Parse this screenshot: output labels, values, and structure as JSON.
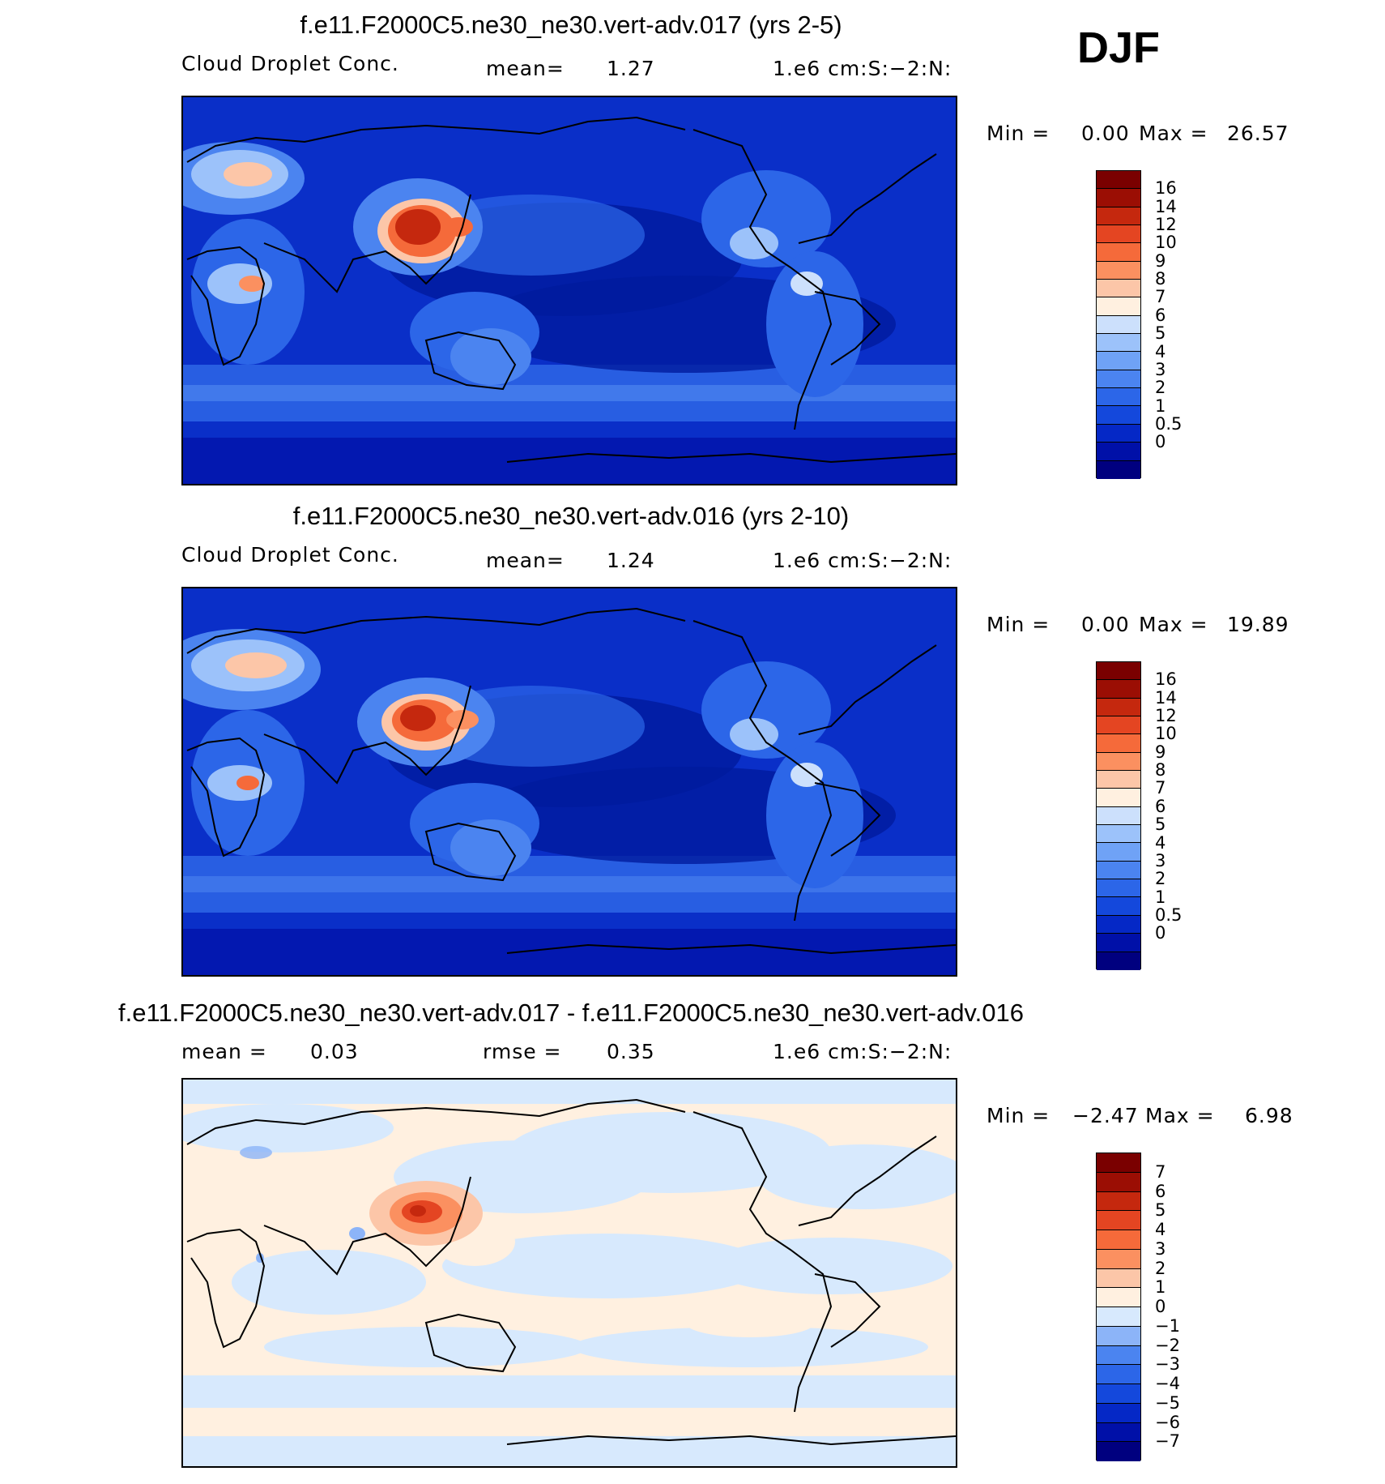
{
  "season": "DJF",
  "colors": {
    "base17": [
      "#00007f",
      "#0010a8",
      "#0528c6",
      "#1448dc",
      "#2c66e8",
      "#4b84f0",
      "#6fa2f6",
      "#9cc2fa",
      "#cce0fc",
      "#fff0e0",
      "#fcc6a8",
      "#fb9060",
      "#f56a3a",
      "#e44522",
      "#c5280e",
      "#9b0e04",
      "#7a0000"
    ],
    "diff16": [
      "#00007f",
      "#0010a8",
      "#0528c6",
      "#1448dc",
      "#2c66e8",
      "#4b84f0",
      "#8cb4f8",
      "#d7e9fd",
      "#fff0e0",
      "#fcc6a8",
      "#fb9060",
      "#f56a3a",
      "#e44522",
      "#c5280e",
      "#9b0e04",
      "#7a0000"
    ]
  },
  "panels": [
    {
      "title": "f.e11.F2000C5.ne30_ne30.vert-adv.017 (yrs 2-5)",
      "variable": "Cloud Droplet Conc.",
      "stat_label": "mean=",
      "stat_value": "1.27",
      "units": "1.e6 cm:S:−2:N:",
      "min_label": "Min =",
      "min_value": "0.00",
      "max_label": "Max =",
      "max_value": "26.57",
      "levels": [
        "16",
        "14",
        "12",
        "10",
        "9",
        "8",
        "7",
        "6",
        "5",
        "4",
        "3",
        "2",
        "1",
        "0.5",
        "0"
      ]
    },
    {
      "title": "f.e11.F2000C5.ne30_ne30.vert-adv.016 (yrs 2-10)",
      "variable": "Cloud Droplet Conc.",
      "stat_label": "mean=",
      "stat_value": "1.24",
      "units": "1.e6 cm:S:−2:N:",
      "min_label": "Min =",
      "min_value": "0.00",
      "max_label": "Max =",
      "max_value": "19.89",
      "levels": [
        "16",
        "14",
        "12",
        "10",
        "9",
        "8",
        "7",
        "6",
        "5",
        "4",
        "3",
        "2",
        "1",
        "0.5",
        "0"
      ]
    },
    {
      "title": "f.e11.F2000C5.ne30_ne30.vert-adv.017 - f.e11.F2000C5.ne30_ne30.vert-adv.016",
      "stat_label": "mean =",
      "stat_value": "0.03",
      "rmse_label": "rmse =",
      "rmse_value": "0.35",
      "units": "1.e6 cm:S:−2:N:",
      "min_label": "Min =",
      "min_value": "−2.47",
      "max_label": "Max =",
      "max_value": "6.98",
      "levels": [
        "7",
        "6",
        "5",
        "4",
        "3",
        "2",
        "1",
        "0",
        "−1",
        "−2",
        "−3",
        "−4",
        "−5",
        "−6",
        "−7"
      ]
    }
  ]
}
